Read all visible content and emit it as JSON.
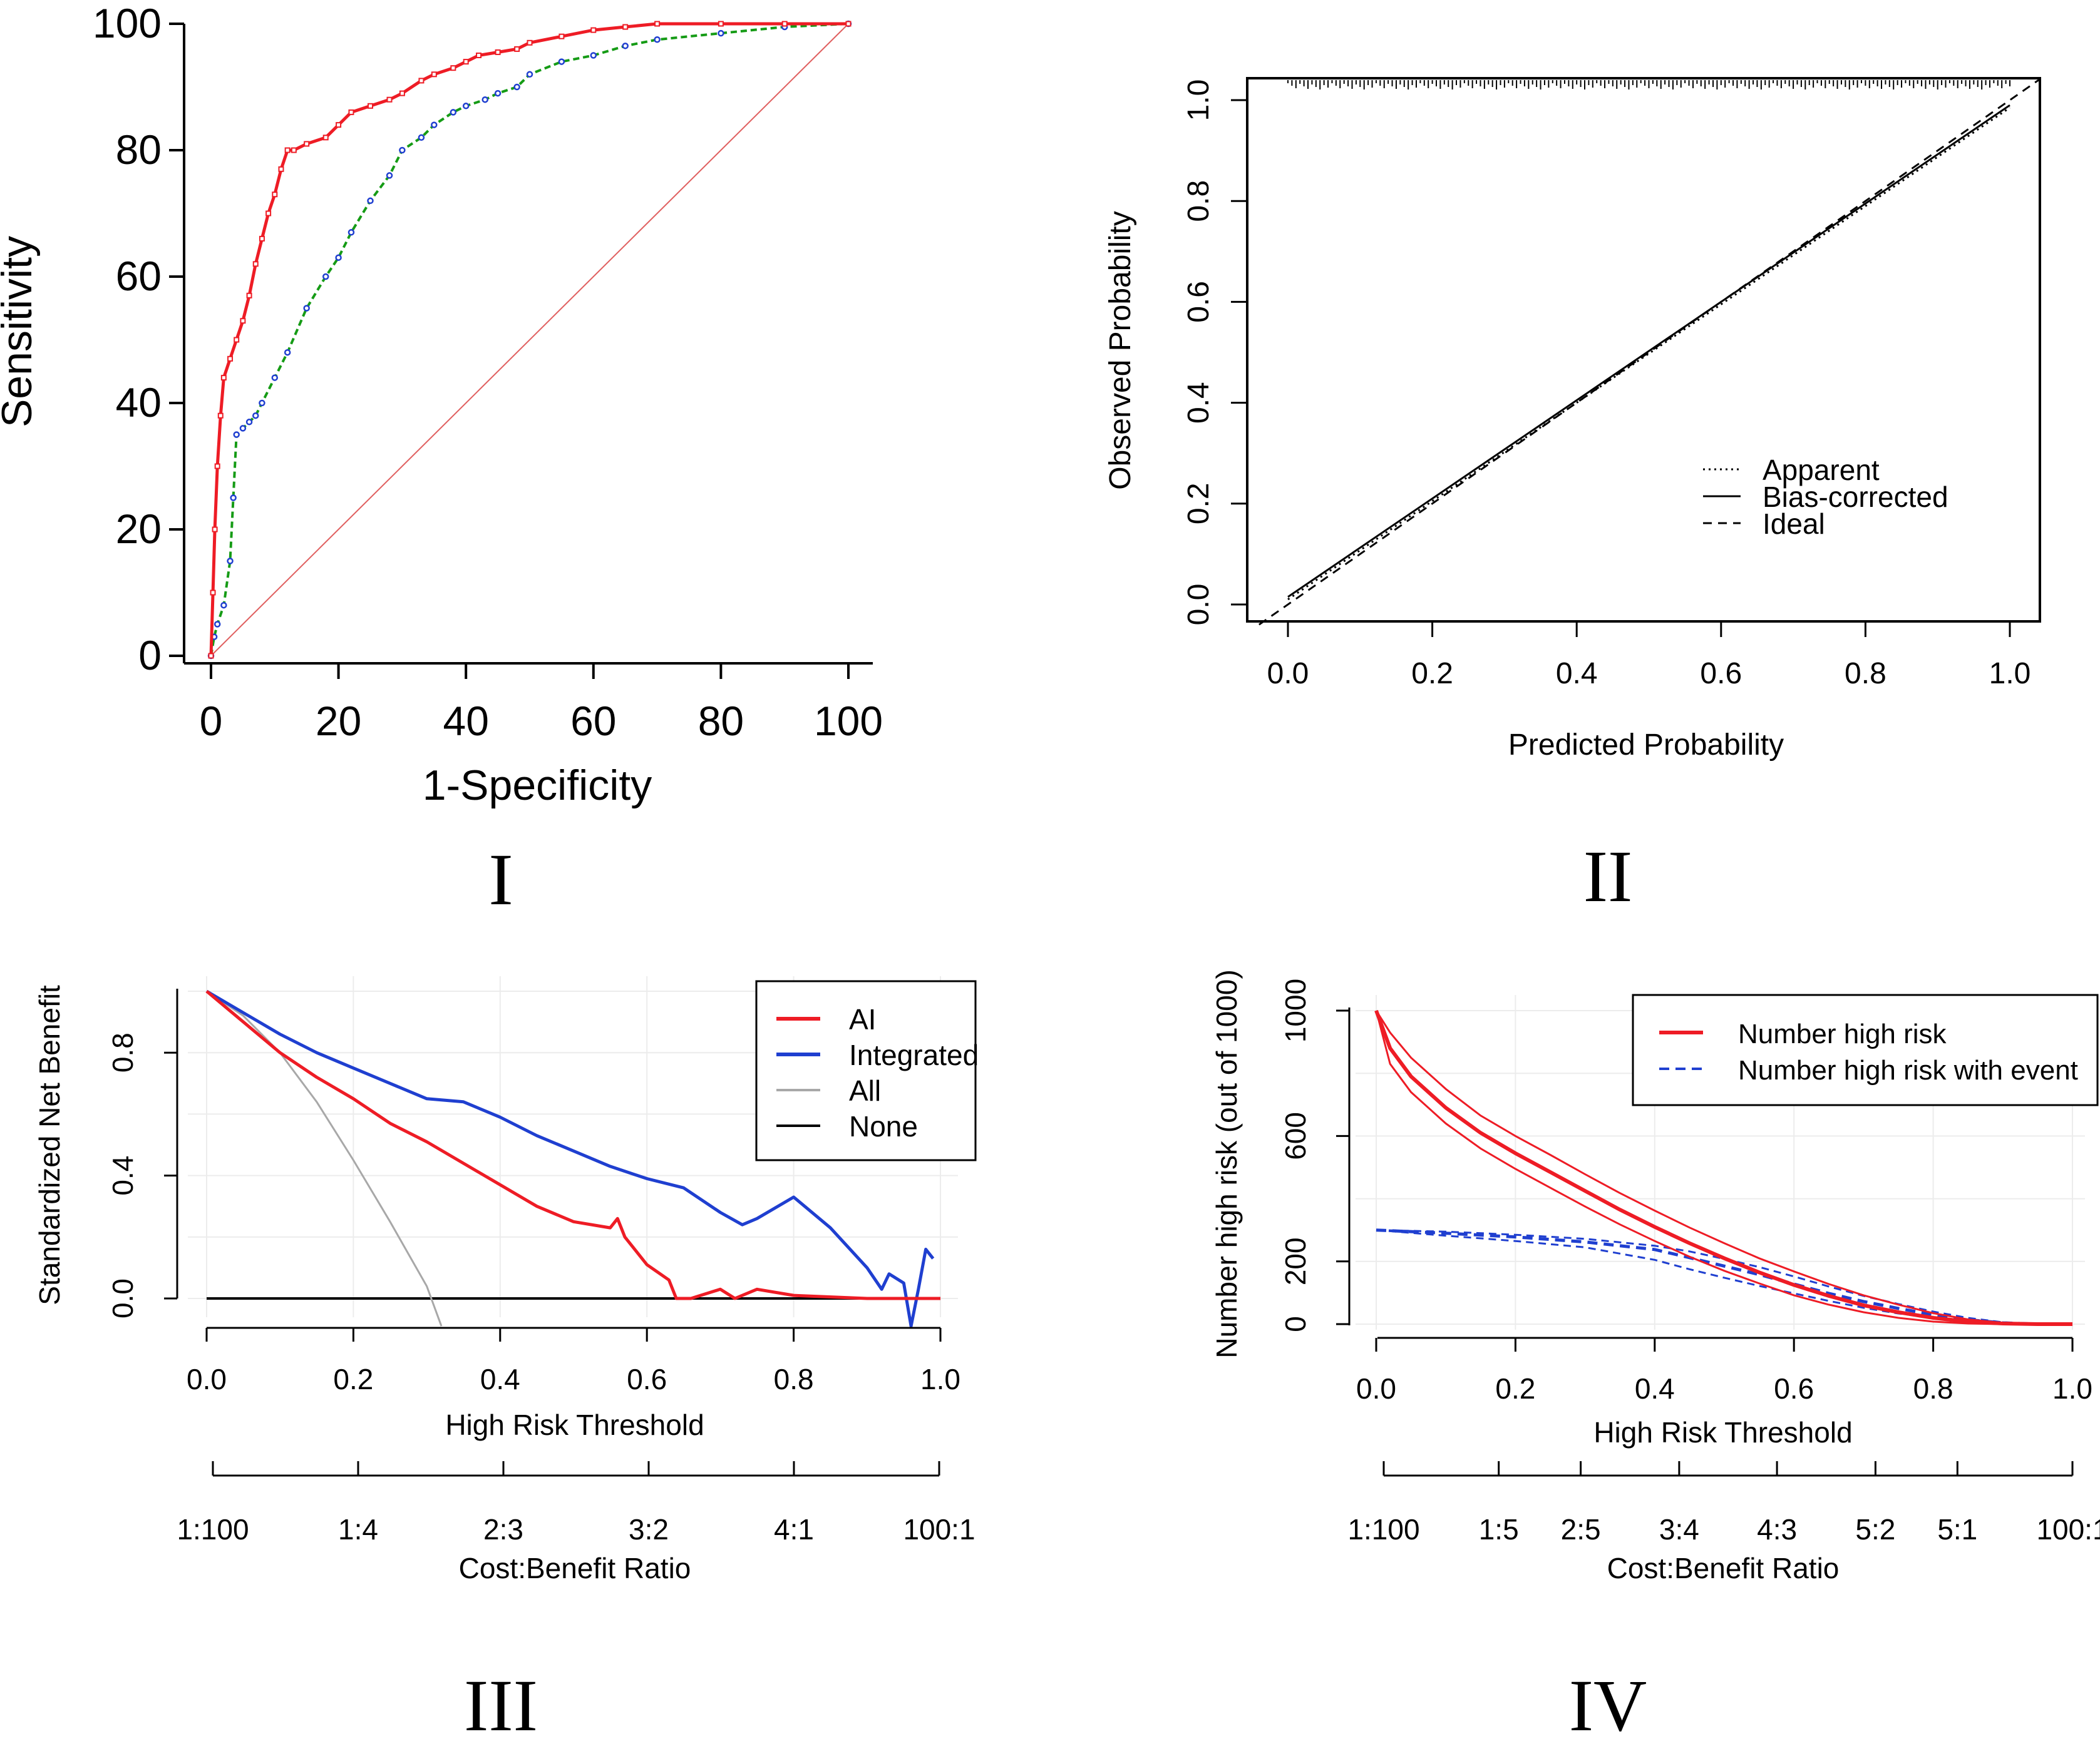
{
  "chart_data": [
    {
      "id": "roc",
      "panel_label": "I",
      "type": "line",
      "title": "",
      "xlabel": "1-Specificity",
      "ylabel": "Sensitivity",
      "xlim": [
        0,
        100
      ],
      "ylim": [
        0,
        100
      ],
      "xticks": [
        0,
        20,
        40,
        60,
        80,
        100
      ],
      "yticks": [
        0,
        20,
        40,
        60,
        80,
        100
      ],
      "colors": {
        "red": "#ee1c25",
        "green": "#159b15",
        "blue": "#1f3fd0",
        "ref": "#e06060",
        "axis": "#000000"
      },
      "series": [
        {
          "name": "red-curve",
          "x": [
            0,
            0.3,
            0.6,
            1,
            1.5,
            2,
            3,
            4,
            5,
            6,
            7,
            8,
            9,
            10,
            11,
            12,
            13,
            15,
            18,
            20,
            22,
            25,
            28,
            30,
            33,
            35,
            38,
            40,
            42,
            45,
            48,
            50,
            55,
            60,
            65,
            70,
            80,
            90,
            100
          ],
          "y": [
            0,
            10,
            20,
            30,
            38,
            44,
            47,
            50,
            53,
            57,
            62,
            66,
            70,
            73,
            77,
            80,
            80,
            81,
            82,
            84,
            86,
            87,
            88,
            89,
            91,
            92,
            93,
            94,
            95,
            95.5,
            96,
            97,
            98,
            99,
            99.5,
            100,
            100,
            100,
            100
          ]
        },
        {
          "name": "green-curve",
          "x": [
            0,
            0.5,
            1,
            2,
            3,
            3.5,
            4,
            5,
            6,
            7,
            8,
            10,
            12,
            15,
            18,
            20,
            22,
            25,
            28,
            30,
            33,
            35,
            38,
            40,
            43,
            45,
            48,
            50,
            55,
            60,
            65,
            70,
            80,
            90,
            100
          ],
          "y": [
            0,
            3,
            5,
            8,
            15,
            25,
            35,
            36,
            37,
            38,
            40,
            44,
            48,
            55,
            60,
            63,
            67,
            72,
            76,
            80,
            82,
            84,
            86,
            87,
            88,
            89,
            90,
            92,
            94,
            95,
            96.5,
            97.5,
            98.5,
            99.5,
            100
          ]
        },
        {
          "name": "reference-line",
          "x": [
            0,
            100
          ],
          "y": [
            0,
            100
          ]
        }
      ]
    },
    {
      "id": "calibration",
      "panel_label": "II",
      "type": "line",
      "title": "",
      "xlabel": "Predicted Probability",
      "ylabel": "Observed Probability",
      "xlim": [
        0,
        1
      ],
      "ylim": [
        0,
        1
      ],
      "xticks": [
        "0.0",
        "0.2",
        "0.4",
        "0.6",
        "0.8",
        "1.0"
      ],
      "yticks": [
        "0.0",
        "0.2",
        "0.4",
        "0.6",
        "0.8",
        "1.0"
      ],
      "legend_position": "bottom-right",
      "legend": [
        "Apparent",
        "Bias-corrected",
        "Ideal"
      ],
      "series": [
        {
          "name": "Apparent",
          "x": [
            0.0,
            0.2,
            0.4,
            0.6,
            0.8,
            1.0
          ],
          "y": [
            0.01,
            0.205,
            0.4,
            0.595,
            0.79,
            0.985
          ]
        },
        {
          "name": "Bias-corrected",
          "x": [
            0.0,
            0.2,
            0.4,
            0.6,
            0.8,
            1.0
          ],
          "y": [
            0.015,
            0.21,
            0.405,
            0.6,
            0.795,
            0.99
          ]
        },
        {
          "name": "Ideal",
          "x": [
            -0.04,
            1.04
          ],
          "y": [
            -0.04,
            1.04
          ]
        }
      ]
    },
    {
      "id": "dca",
      "panel_label": "III",
      "type": "line",
      "title": "",
      "xlabel": "High Risk Threshold",
      "ylabel": "Standardized Net Benefit",
      "xlim": [
        0,
        1
      ],
      "ylim": [
        0,
        1
      ],
      "xticks": [
        "0.0",
        "0.2",
        "0.4",
        "0.6",
        "0.8",
        "1.0"
      ],
      "yticks": [
        "0.0",
        "0.4",
        "0.8"
      ],
      "cost_benefit_label": "Cost:Benefit Ratio",
      "cost_benefit_ticks": [
        {
          "x": 0.0,
          "label": "1:100"
        },
        {
          "x": 0.2,
          "label": "1:4"
        },
        {
          "x": 0.4,
          "label": "2:3"
        },
        {
          "x": 0.6,
          "label": "3:2"
        },
        {
          "x": 0.8,
          "label": "4:1"
        },
        {
          "x": 1.0,
          "label": "100:1"
        }
      ],
      "legend_position": "top-right",
      "legend": [
        {
          "label": "AI",
          "color": "#ee1c25"
        },
        {
          "label": "Integrated",
          "color": "#1f3fd0"
        },
        {
          "label": "All",
          "color": "#a8a8a8"
        },
        {
          "label": "None",
          "color": "#000000"
        }
      ],
      "series": [
        {
          "name": "AI",
          "x": [
            0,
            0.05,
            0.1,
            0.15,
            0.2,
            0.25,
            0.3,
            0.35,
            0.4,
            0.45,
            0.5,
            0.55,
            0.56,
            0.57,
            0.6,
            0.63,
            0.64,
            0.66,
            0.7,
            0.72,
            0.75,
            0.8,
            0.9,
            1.0
          ],
          "y": [
            1.0,
            0.9,
            0.8,
            0.72,
            0.65,
            0.57,
            0.51,
            0.44,
            0.37,
            0.3,
            0.25,
            0.23,
            0.26,
            0.2,
            0.11,
            0.06,
            0.0,
            0.0,
            0.03,
            0.0,
            0.03,
            0.01,
            0.0,
            0.0
          ]
        },
        {
          "name": "Integrated",
          "x": [
            0,
            0.05,
            0.1,
            0.15,
            0.2,
            0.25,
            0.3,
            0.35,
            0.4,
            0.45,
            0.5,
            0.55,
            0.6,
            0.65,
            0.7,
            0.73,
            0.75,
            0.8,
            0.85,
            0.9,
            0.92,
            0.93,
            0.95,
            0.96,
            0.97,
            0.98,
            0.99
          ],
          "y": [
            1.0,
            0.93,
            0.86,
            0.8,
            0.75,
            0.7,
            0.65,
            0.64,
            0.59,
            0.53,
            0.48,
            0.43,
            0.39,
            0.36,
            0.28,
            0.24,
            0.26,
            0.33,
            0.23,
            0.1,
            0.03,
            0.08,
            0.05,
            -0.09,
            0.03,
            0.16,
            0.13
          ]
        },
        {
          "name": "All",
          "x": [
            0,
            0.05,
            0.1,
            0.15,
            0.2,
            0.25,
            0.3,
            0.32
          ],
          "y": [
            1.0,
            0.92,
            0.8,
            0.64,
            0.45,
            0.25,
            0.04,
            -0.09
          ]
        },
        {
          "name": "None",
          "x": [
            0,
            1.0
          ],
          "y": [
            0,
            0
          ]
        }
      ]
    },
    {
      "id": "clinical-impact",
      "panel_label": "IV",
      "type": "line",
      "title": "",
      "xlabel": "High Risk Threshold",
      "ylabel": "Number high risk (out of 1000)",
      "xlim": [
        0,
        1
      ],
      "ylim": [
        0,
        1000
      ],
      "xticks": [
        "0.0",
        "0.2",
        "0.4",
        "0.6",
        "0.8",
        "1.0"
      ],
      "yticks": [
        "0",
        "200",
        "600",
        "1000"
      ],
      "cost_benefit_label": "Cost:Benefit Ratio",
      "cost_benefit_ticks": [
        {
          "x": 0.0,
          "label": "1:100"
        },
        {
          "x": 0.167,
          "label": "1:5"
        },
        {
          "x": 0.286,
          "label": "2:5"
        },
        {
          "x": 0.429,
          "label": "3:4"
        },
        {
          "x": 0.571,
          "label": "4:3"
        },
        {
          "x": 0.714,
          "label": "5:2"
        },
        {
          "x": 0.833,
          "label": "5:1"
        },
        {
          "x": 1.0,
          "label": "100:1"
        }
      ],
      "legend_position": "top-right",
      "legend": [
        {
          "label": "Number high risk",
          "color": "#ee1c25"
        },
        {
          "label": "Number high risk with event",
          "color": "#1f3fd0"
        }
      ],
      "series": [
        {
          "name": "Number high risk",
          "x": [
            0,
            0.02,
            0.05,
            0.1,
            0.15,
            0.2,
            0.25,
            0.3,
            0.35,
            0.4,
            0.45,
            0.5,
            0.55,
            0.6,
            0.65,
            0.7,
            0.75,
            0.8,
            0.85,
            0.9,
            0.95,
            1.0
          ],
          "y": [
            1000,
            880,
            790,
            690,
            610,
            545,
            485,
            425,
            365,
            310,
            258,
            210,
            165,
            125,
            90,
            60,
            38,
            20,
            8,
            2,
            0,
            0
          ]
        },
        {
          "name": "Number high risk upper",
          "x": [
            0,
            0.02,
            0.05,
            0.1,
            0.15,
            0.2,
            0.25,
            0.3,
            0.35,
            0.4,
            0.45,
            0.5,
            0.55,
            0.6,
            0.65,
            0.7,
            0.75,
            0.8,
            0.85,
            0.9,
            0.95,
            1.0
          ],
          "y": [
            1000,
            930,
            850,
            750,
            665,
            600,
            540,
            478,
            418,
            362,
            308,
            258,
            210,
            168,
            128,
            92,
            62,
            35,
            15,
            4,
            0,
            0
          ]
        },
        {
          "name": "Number high risk lower",
          "x": [
            0,
            0.02,
            0.05,
            0.1,
            0.15,
            0.2,
            0.25,
            0.3,
            0.35,
            0.4,
            0.45,
            0.5,
            0.55,
            0.6,
            0.65,
            0.7,
            0.75,
            0.8,
            0.85,
            0.9,
            0.95,
            1.0
          ],
          "y": [
            1000,
            830,
            740,
            640,
            560,
            495,
            435,
            375,
            318,
            265,
            215,
            170,
            130,
            92,
            62,
            38,
            20,
            8,
            2,
            0,
            0,
            0
          ]
        },
        {
          "name": "Number high risk with event",
          "x": [
            0,
            0.1,
            0.2,
            0.3,
            0.4,
            0.45,
            0.5,
            0.55,
            0.6,
            0.65,
            0.7,
            0.75,
            0.8,
            0.85,
            0.9,
            0.95,
            1.0
          ],
          "y": [
            300,
            290,
            278,
            262,
            238,
            212,
            185,
            158,
            128,
            98,
            72,
            50,
            30,
            14,
            4,
            0,
            0
          ]
        },
        {
          "name": "Number high risk with event upper",
          "x": [
            0,
            0.1,
            0.2,
            0.3,
            0.4,
            0.45,
            0.5,
            0.55,
            0.6,
            0.65,
            0.7,
            0.75,
            0.8,
            0.85,
            0.9,
            0.95,
            1.0
          ],
          "y": [
            300,
            295,
            285,
            272,
            250,
            232,
            208,
            182,
            152,
            120,
            90,
            64,
            40,
            20,
            6,
            0,
            0
          ]
        },
        {
          "name": "Number high risk with event lower",
          "x": [
            0,
            0.1,
            0.2,
            0.3,
            0.4,
            0.45,
            0.5,
            0.55,
            0.6,
            0.65,
            0.7,
            0.75,
            0.8,
            0.85,
            0.9,
            0.95,
            1.0
          ],
          "y": [
            300,
            282,
            265,
            245,
            205,
            175,
            148,
            122,
            98,
            74,
            52,
            34,
            20,
            8,
            2,
            0,
            0
          ]
        }
      ]
    }
  ]
}
